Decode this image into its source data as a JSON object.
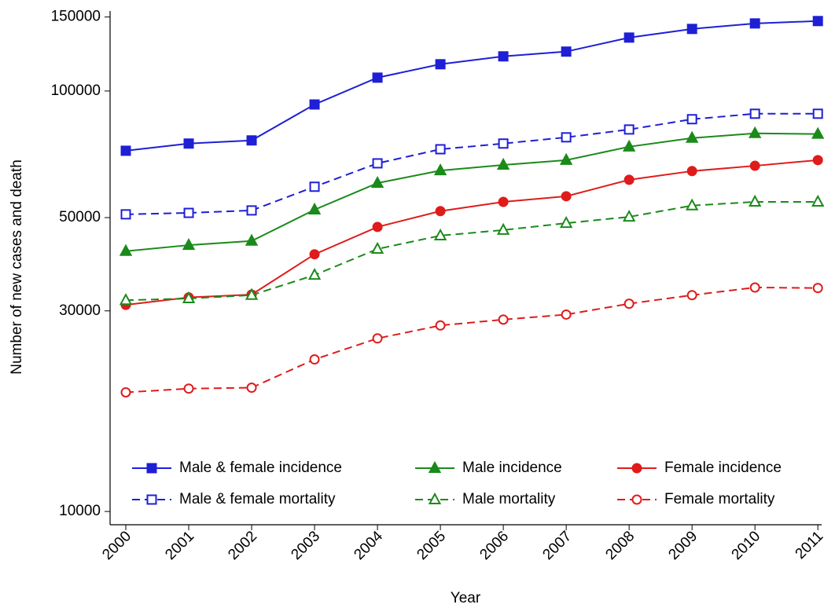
{
  "chart_data": {
    "type": "line",
    "y_label": "Number of new cases and death",
    "x_label": "Year",
    "x": [
      2000,
      2001,
      2002,
      2003,
      2004,
      2005,
      2006,
      2007,
      2008,
      2009,
      2010,
      2011
    ],
    "xlim": [
      1999.75,
      2011.06
    ],
    "xticks": [
      2000,
      2001,
      2002,
      2003,
      2004,
      2005,
      2006,
      2007,
      2008,
      2009,
      2010,
      2011
    ],
    "ylim": [
      9300,
      155000
    ],
    "yticks": [
      10000,
      30000,
      50000,
      100000,
      150000
    ],
    "log_scale": true,
    "grid": false,
    "legend_position": "bottom",
    "series": [
      {
        "name": "Male & female incidence",
        "color": "#1f1fd6",
        "dash": false,
        "marker": "square",
        "filled": true,
        "values": [
          72100,
          75000,
          76300,
          92900,
          107600,
          115800,
          120900,
          124100,
          134000,
          140500,
          144800,
          146700
        ]
      },
      {
        "name": "Male incidence",
        "color": "#1a8a1a",
        "dash": false,
        "marker": "triangle",
        "filled": true,
        "values": [
          41600,
          43000,
          44000,
          52200,
          60400,
          64700,
          66700,
          68500,
          73700,
          77300,
          79300,
          79000
        ]
      },
      {
        "name": "Female incidence",
        "color": "#e01b1b",
        "dash": false,
        "marker": "circle",
        "filled": true,
        "values": [
          31000,
          32300,
          32800,
          40900,
          47500,
          51800,
          54500,
          56200,
          61500,
          64500,
          66400,
          68500
        ]
      },
      {
        "name": "Male & female mortality",
        "color": "#1f1fd6",
        "dash": true,
        "marker": "square",
        "filled": false,
        "values": [
          50900,
          51300,
          52000,
          59200,
          67300,
          72700,
          75000,
          77600,
          81000,
          85700,
          88300,
          88300
        ]
      },
      {
        "name": "Male mortality",
        "color": "#1a8a1a",
        "dash": true,
        "marker": "triangle",
        "filled": false,
        "values": [
          31800,
          32100,
          32700,
          36500,
          42100,
          45300,
          46700,
          48500,
          50200,
          53400,
          54500,
          54500
        ]
      },
      {
        "name": "Female mortality",
        "color": "#e01b1b",
        "dash": true,
        "marker": "circle",
        "filled": false,
        "values": [
          19200,
          19600,
          19700,
          23000,
          25800,
          27700,
          28600,
          29400,
          31200,
          32700,
          34100,
          34000
        ]
      }
    ]
  }
}
